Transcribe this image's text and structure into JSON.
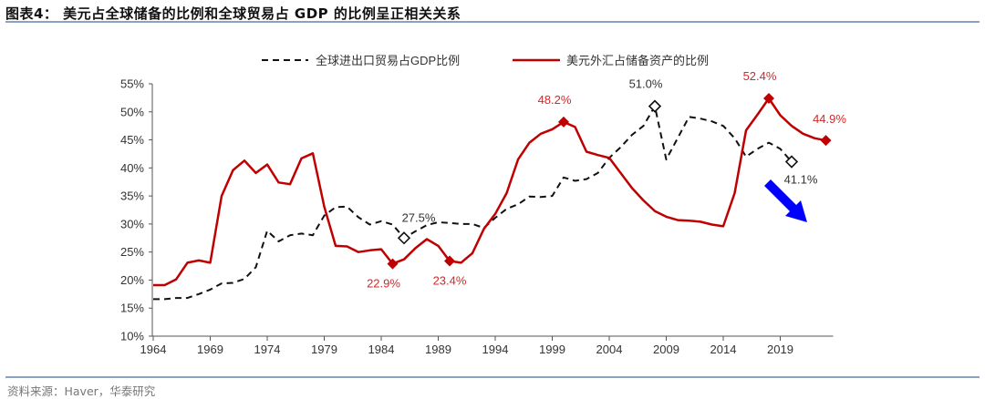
{
  "title": "图表4：  美元占全球储备的比例和全球贸易占 GDP 的比例呈正相关关系",
  "source": "资料来源：Haver，华泰研究",
  "chart_data": {
    "type": "line",
    "title": "",
    "xlabel": "",
    "ylabel": "",
    "ylim": [
      10,
      55
    ],
    "xlim": [
      1964,
      2023
    ],
    "y_ticks": [
      "10%",
      "15%",
      "20%",
      "25%",
      "30%",
      "35%",
      "40%",
      "45%",
      "50%",
      "55%"
    ],
    "y_tick_values": [
      10,
      15,
      20,
      25,
      30,
      35,
      40,
      45,
      50,
      55
    ],
    "x_ticks": [
      "1964",
      "1969",
      "1974",
      "1979",
      "1984",
      "1989",
      "1994",
      "1999",
      "2004",
      "2009",
      "2014",
      "2019"
    ],
    "x_tick_values": [
      1964,
      1969,
      1974,
      1979,
      1984,
      1989,
      1994,
      1999,
      2004,
      2009,
      2014,
      2019
    ],
    "grid": false,
    "legend_position": "top",
    "series": [
      {
        "name": "全球进出口贸易占GDP比例",
        "color": "#111111",
        "style": "dashed",
        "x": [
          1964,
          1965,
          1966,
          1967,
          1968,
          1969,
          1970,
          1971,
          1972,
          1973,
          1974,
          1975,
          1976,
          1977,
          1978,
          1979,
          1980,
          1981,
          1982,
          1983,
          1984,
          1985,
          1986,
          1987,
          1988,
          1989,
          1990,
          1991,
          1992,
          1993,
          1994,
          1995,
          1996,
          1997,
          1998,
          1999,
          2000,
          2001,
          2002,
          2003,
          2004,
          2005,
          2006,
          2007,
          2008,
          2009,
          2010,
          2011,
          2012,
          2013,
          2014,
          2015,
          2016,
          2017,
          2018,
          2019,
          2020
        ],
        "values": [
          16.6,
          16.6,
          16.8,
          16.8,
          17.5,
          18.3,
          19.4,
          19.5,
          20.2,
          22.3,
          28.8,
          26.9,
          28.0,
          28.3,
          28.0,
          31.5,
          33.0,
          33.1,
          31.2,
          29.9,
          30.5,
          29.9,
          27.5,
          28.7,
          29.8,
          30.3,
          30.2,
          30.0,
          30.0,
          29.3,
          31.1,
          32.7,
          33.5,
          34.9,
          34.8,
          35.0,
          38.3,
          37.7,
          38.0,
          39.1,
          41.8,
          43.7,
          45.9,
          47.5,
          51.0,
          41.5,
          45.3,
          49.1,
          48.8,
          48.3,
          47.5,
          45.3,
          42.0,
          43.4,
          44.5,
          43.4,
          41.1
        ],
        "annotations": [
          {
            "x": 1986,
            "value": 27.5,
            "label": "27.5%"
          },
          {
            "x": 2008,
            "value": 51.0,
            "label": "51.0%"
          },
          {
            "x": 2020,
            "value": 41.1,
            "label": "41.1%"
          }
        ]
      },
      {
        "name": "美元外汇占储备资产的比例",
        "color": "#c00000",
        "style": "solid",
        "x": [
          1964,
          1965,
          1966,
          1967,
          1968,
          1969,
          1970,
          1971,
          1972,
          1973,
          1974,
          1975,
          1976,
          1977,
          1978,
          1979,
          1980,
          1981,
          1982,
          1983,
          1984,
          1985,
          1986,
          1987,
          1988,
          1989,
          1990,
          1991,
          1992,
          1993,
          1994,
          1995,
          1996,
          1997,
          1998,
          1999,
          2000,
          2001,
          2002,
          2003,
          2004,
          2005,
          2006,
          2007,
          2008,
          2009,
          2010,
          2011,
          2012,
          2013,
          2014,
          2015,
          2016,
          2017,
          2018,
          2019,
          2020,
          2021,
          2022,
          2023
        ],
        "values": [
          19.1,
          19.1,
          20.1,
          23.1,
          23.5,
          23.1,
          35.0,
          39.6,
          41.3,
          39.1,
          40.6,
          37.4,
          37.1,
          41.7,
          42.6,
          33.1,
          26.1,
          26.0,
          25.0,
          25.3,
          25.5,
          22.9,
          23.7,
          25.7,
          27.3,
          26.1,
          23.4,
          23.1,
          24.8,
          29.1,
          31.8,
          35.5,
          41.5,
          44.5,
          46.1,
          46.9,
          48.2,
          47.3,
          42.9,
          42.3,
          41.8,
          39.1,
          36.4,
          34.2,
          32.3,
          31.3,
          30.7,
          30.6,
          30.4,
          29.9,
          29.6,
          35.5,
          46.7,
          49.5,
          52.4,
          49.4,
          47.5,
          46.1,
          45.3,
          44.9
        ],
        "annotations": [
          {
            "x": 1985,
            "value": 22.9,
            "label": "22.9%"
          },
          {
            "x": 1990,
            "value": 23.4,
            "label": "23.4%"
          },
          {
            "x": 2000,
            "value": 48.2,
            "label": "48.2%"
          },
          {
            "x": 2018,
            "value": 52.4,
            "label": "52.4%"
          },
          {
            "x": 2023,
            "value": 44.9,
            "label": "44.9%"
          }
        ]
      }
    ],
    "trend_arrow": {
      "color": "#0000ff",
      "direction": "down-right"
    }
  }
}
